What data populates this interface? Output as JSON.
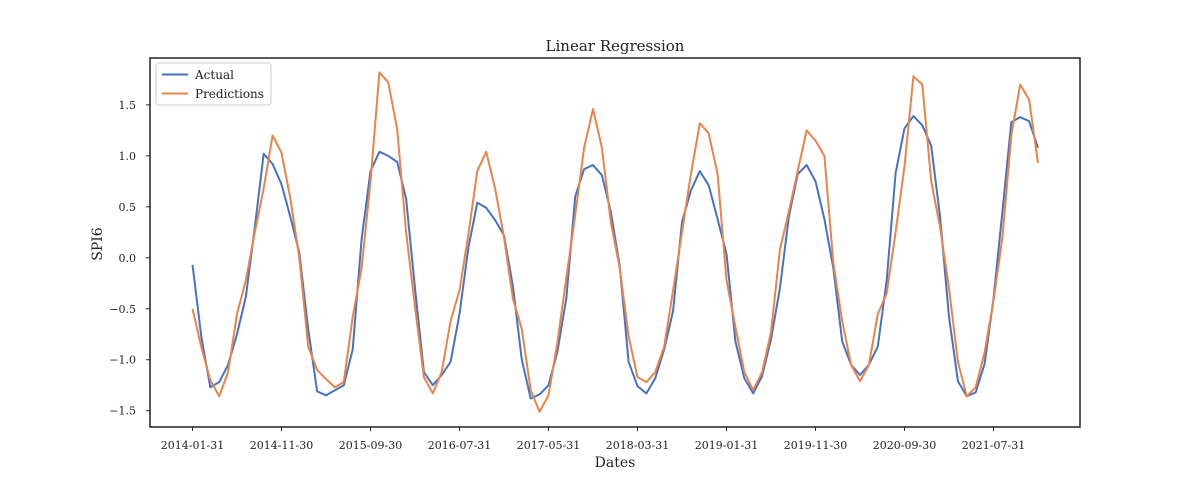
{
  "chart_data": {
    "type": "line",
    "title": "Linear Regression",
    "xlabel": "Dates",
    "ylabel": "SPI6",
    "ylim": [
      -1.66,
      1.96
    ],
    "yticks": [
      -1.5,
      -1.0,
      -0.5,
      0.0,
      0.5,
      1.0,
      1.5
    ],
    "ytick_labels": [
      "−1.5",
      "−1.0",
      "−0.5",
      "0.0",
      "0.5",
      "1.0",
      "1.5"
    ],
    "xtick_labels": [
      "2014-01-31",
      "2014-11-30",
      "2015-09-30",
      "2016-07-31",
      "2017-05-31",
      "2018-03-31",
      "2019-01-31",
      "2019-11-30",
      "2020-09-30",
      "2021-07-31"
    ],
    "x_start": "2014-01-31",
    "x_frequency": "monthly",
    "grid": false,
    "legend_position": "upper-left",
    "series": [
      {
        "name": "Actual",
        "color": "#4472c4",
        "values": [
          -0.07,
          -0.78,
          -1.27,
          -1.22,
          -1.05,
          -0.75,
          -0.38,
          0.3,
          1.02,
          0.92,
          0.72,
          0.4,
          0.05,
          -0.7,
          -1.31,
          -1.35,
          -1.3,
          -1.25,
          -0.9,
          0.18,
          0.85,
          1.04,
          1.0,
          0.94,
          0.58,
          -0.3,
          -1.12,
          -1.25,
          -1.15,
          -1.02,
          -0.55,
          0.1,
          0.54,
          0.49,
          0.37,
          0.22,
          -0.28,
          -1.0,
          -1.38,
          -1.34,
          -1.25,
          -0.92,
          -0.4,
          0.6,
          0.87,
          0.91,
          0.81,
          0.45,
          -0.08,
          -1.02,
          -1.26,
          -1.33,
          -1.18,
          -0.9,
          -0.52,
          0.35,
          0.66,
          0.85,
          0.71,
          0.38,
          0.04,
          -0.82,
          -1.18,
          -1.33,
          -1.16,
          -0.8,
          -0.3,
          0.4,
          0.82,
          0.91,
          0.75,
          0.38,
          -0.1,
          -0.82,
          -1.05,
          -1.15,
          -1.05,
          -0.87,
          -0.22,
          0.83,
          1.27,
          1.39,
          1.3,
          1.1,
          0.4,
          -0.58,
          -1.21,
          -1.36,
          -1.32,
          -1.04,
          -0.4,
          0.45,
          1.33,
          1.38,
          1.34,
          1.08
        ]
      },
      {
        "name": "Predictions",
        "color": "#e8834a",
        "values": [
          -0.5,
          -0.88,
          -1.2,
          -1.36,
          -1.12,
          -0.55,
          -0.22,
          0.25,
          0.68,
          1.2,
          1.03,
          0.58,
          0.0,
          -0.87,
          -1.1,
          -1.19,
          -1.27,
          -1.22,
          -0.58,
          -0.1,
          0.75,
          1.82,
          1.72,
          1.26,
          0.25,
          -0.48,
          -1.17,
          -1.33,
          -1.12,
          -0.62,
          -0.32,
          0.23,
          0.85,
          1.04,
          0.68,
          0.2,
          -0.4,
          -0.7,
          -1.3,
          -1.51,
          -1.35,
          -0.83,
          -0.2,
          0.42,
          1.08,
          1.46,
          1.08,
          0.35,
          -0.1,
          -0.77,
          -1.17,
          -1.22,
          -1.12,
          -0.87,
          -0.32,
          0.25,
          0.82,
          1.32,
          1.22,
          0.82,
          -0.22,
          -0.68,
          -1.12,
          -1.3,
          -1.12,
          -0.73,
          0.08,
          0.45,
          0.85,
          1.25,
          1.15,
          1.0,
          -0.05,
          -0.62,
          -1.05,
          -1.21,
          -1.05,
          -0.55,
          -0.35,
          0.25,
          0.9,
          1.78,
          1.7,
          0.75,
          0.3,
          -0.3,
          -1.02,
          -1.36,
          -1.27,
          -0.93,
          -0.42,
          0.2,
          1.2,
          1.7,
          1.55,
          0.93
        ]
      }
    ]
  }
}
